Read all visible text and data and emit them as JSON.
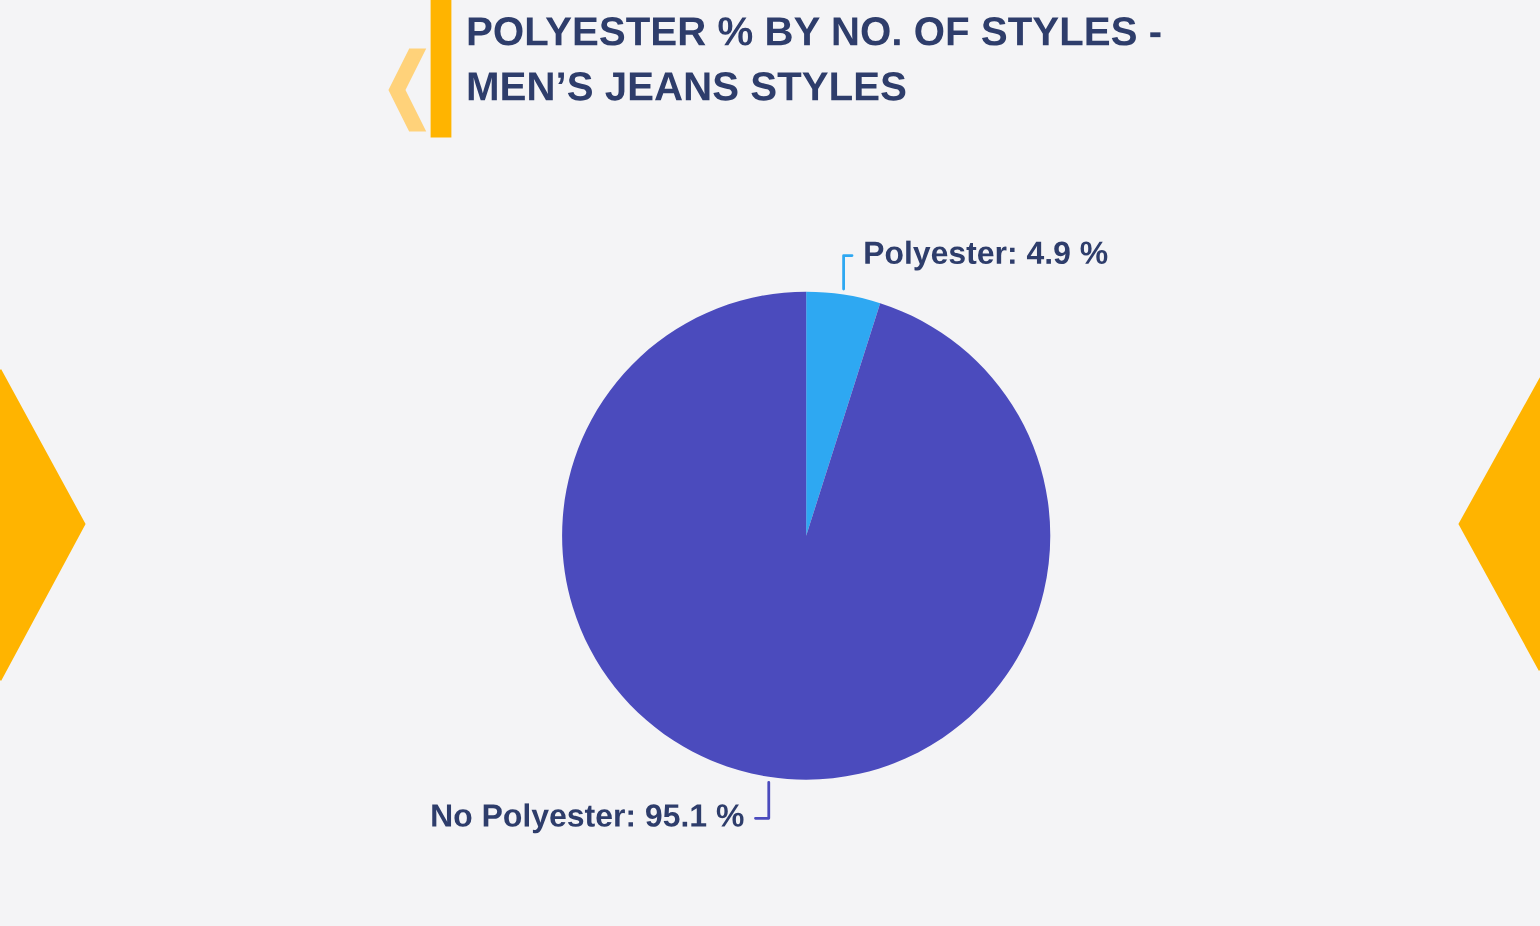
{
  "chart_data": {
    "type": "pie",
    "title": "POLYESTER % BY NO. OF STYLES -\nMEN’S JEANS STYLES",
    "categories": [
      "Polyester",
      "No Polyester"
    ],
    "values": [
      4.9,
      95.1
    ],
    "colors": [
      "#2ea8f2",
      "#4b4bbd"
    ],
    "value_labels": [
      "4.9 %",
      "95.1 %"
    ],
    "legend": false
  }
}
